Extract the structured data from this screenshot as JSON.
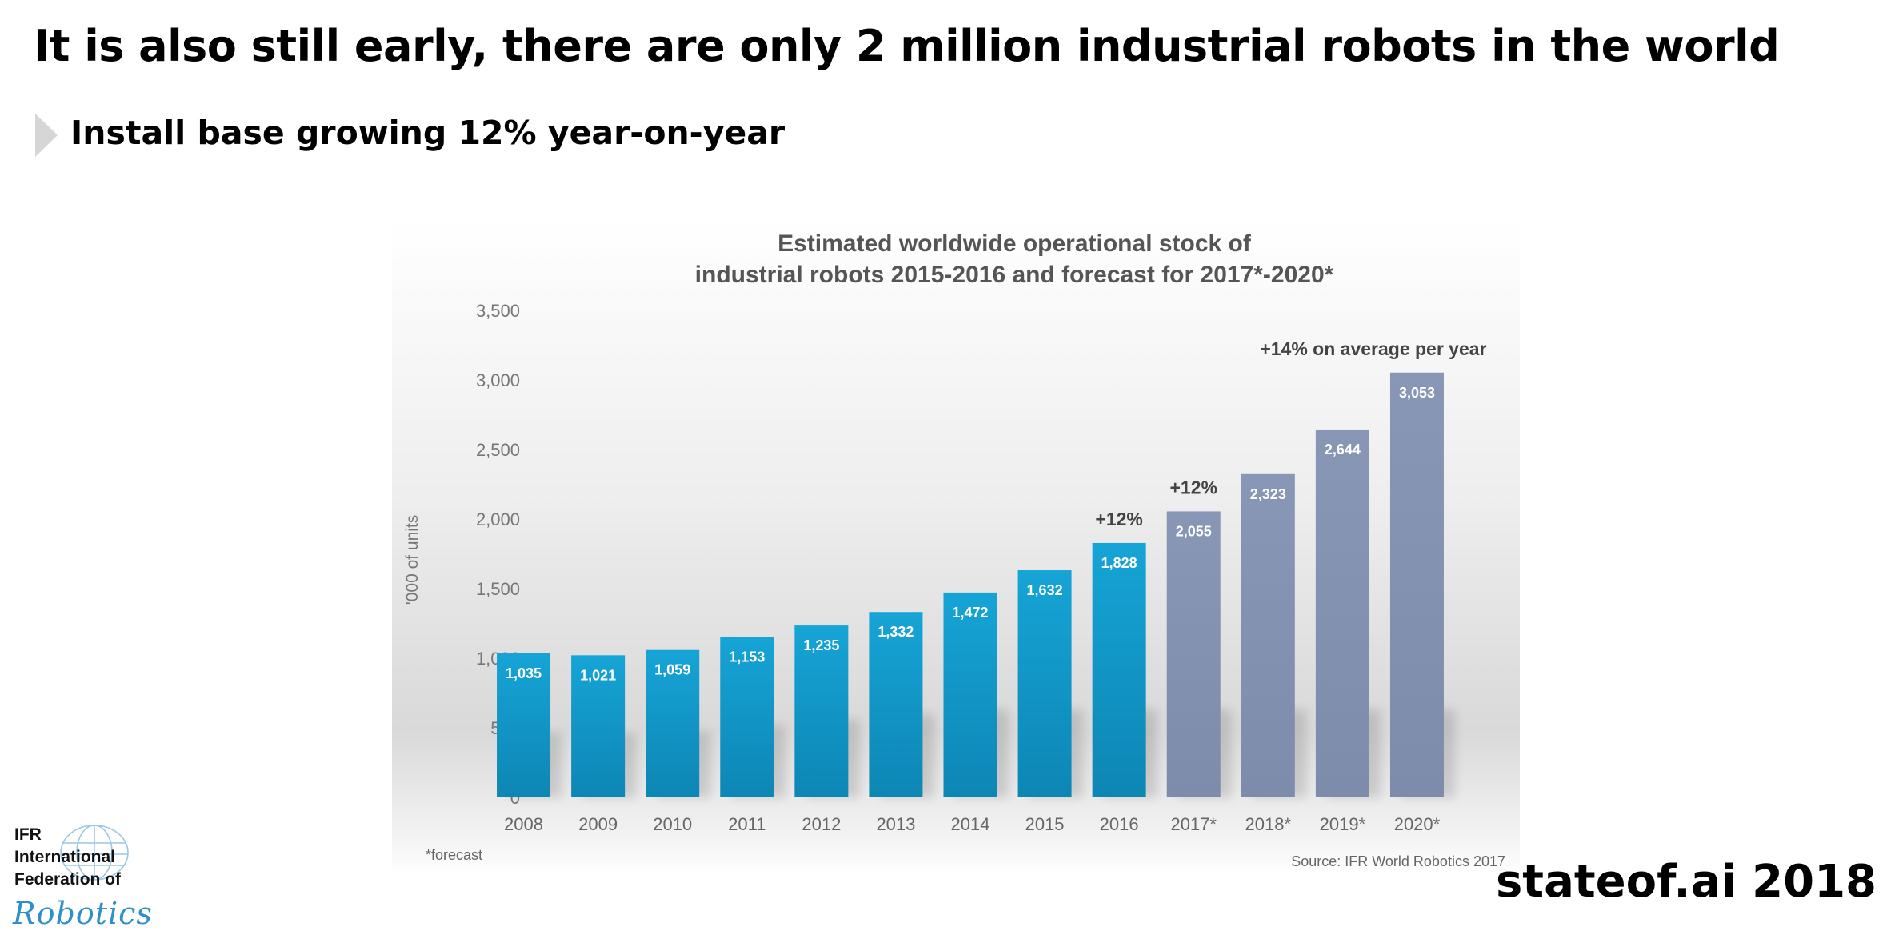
{
  "slide": {
    "title": "It is also still early, there are only 2 million industrial robots in the world",
    "bullet": "Install base growing 12% year-on-year",
    "footer_brand": "stateof.ai 2018"
  },
  "logo": {
    "lines": [
      "IFR",
      "International",
      "Federation of"
    ],
    "script_word": "Robotics"
  },
  "chart_data": {
    "type": "bar",
    "title": "Estimated worldwide operational stock of",
    "subtitle": "industrial robots 2015-2016 and forecast for 2017*-2020*",
    "ylabel": "'000 of units",
    "xlabel": "",
    "ylim": [
      0,
      3500
    ],
    "yticks": [
      0,
      500,
      1000,
      1500,
      2000,
      2500,
      3000,
      3500
    ],
    "ytick_labels": [
      "0",
      "500",
      "1,000",
      "1,500",
      "2,000",
      "2,500",
      "3,000",
      "3,500"
    ],
    "categories": [
      "2008",
      "2009",
      "2010",
      "2011",
      "2012",
      "2013",
      "2014",
      "2015",
      "2016",
      "2017*",
      "2018*",
      "2019*",
      "2020*"
    ],
    "values": [
      1035,
      1021,
      1059,
      1153,
      1235,
      1332,
      1472,
      1632,
      1828,
      2055,
      2323,
      2644,
      3053
    ],
    "value_labels": [
      "1,035",
      "1,021",
      "1,059",
      "1,153",
      "1,235",
      "1,332",
      "1,472",
      "1,632",
      "1,828",
      "2,055",
      "2,323",
      "2,644",
      "3,053"
    ],
    "forecast_from_index": 9,
    "colors": {
      "actual": "#1597c8",
      "forecast": "#8493b2"
    },
    "annotations": [
      {
        "text": "+12%",
        "category": "2016"
      },
      {
        "text": "+12%",
        "category": "2017*"
      },
      {
        "text": "+14% on average per year",
        "category": "2019*"
      }
    ],
    "footnote": "*forecast",
    "source": "Source: IFR World Robotics 2017",
    "grid": false,
    "legend": "none"
  }
}
